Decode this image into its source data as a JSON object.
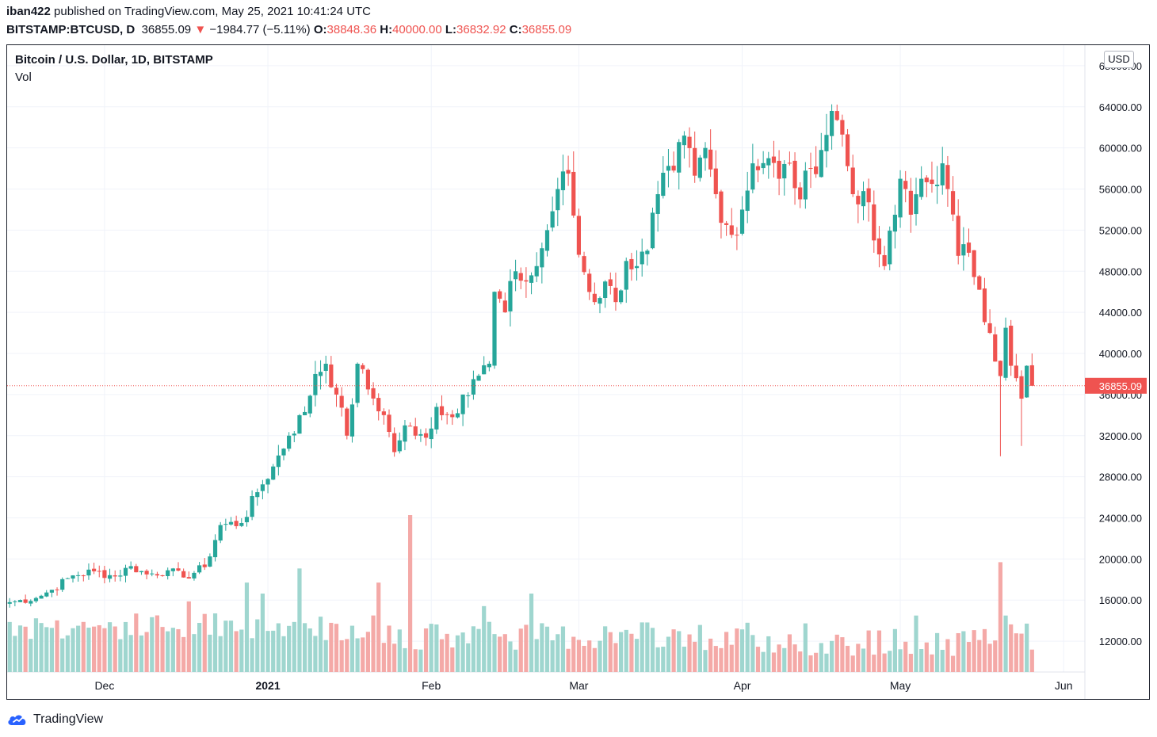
{
  "header": {
    "publisher": "iban422",
    "published_text": "published on TradingView.com, May 25, 2021 10:41:24 UTC",
    "symbol": "BITSTAMP:BTCUSD, D",
    "last": "36855.09",
    "arrow": "▼",
    "change": "−1984.77 (−5.11%)",
    "o_label": "O:",
    "o_value": "38848.36",
    "h_label": "H:",
    "h_value": "40000.00",
    "l_label": "L:",
    "l_value": "36832.92",
    "c_label": "C:",
    "c_value": "36855.09"
  },
  "legend": {
    "title": "Bitcoin / U.S. Dollar, 1D, BITSTAMP",
    "volume_label": "Vol"
  },
  "currency": "USD",
  "price_tag": "36855.09",
  "footer": {
    "brand": "TradingView"
  },
  "colors": {
    "up": "#26a69a",
    "down": "#ef5350",
    "vol_up": "#9fd6cf",
    "vol_down": "#f4a9a7",
    "grid": "#f0f3fa",
    "text": "#131722"
  },
  "chart_data": {
    "type": "candlestick",
    "title": "Bitcoin / U.S. Dollar, 1D, BITSTAMP",
    "ylim": [
      9000,
      70000
    ],
    "y_ticks": [
      12000,
      16000,
      20000,
      24000,
      28000,
      32000,
      36000,
      40000,
      44000,
      48000,
      52000,
      56000,
      60000,
      64000,
      68000
    ],
    "y_tick_labels": [
      "12000.00",
      "16000.00",
      "20000.00",
      "24000.00",
      "28000.00",
      "32000.00",
      "36000.00",
      "40000.00",
      "44000.00",
      "48000.00",
      "52000.00",
      "56000.00",
      "60000.00",
      "64000.00",
      "68000.00"
    ],
    "x_ticks": [
      {
        "label": "Dec",
        "index": 18,
        "bold": false
      },
      {
        "label": "2021",
        "index": 49,
        "bold": true
      },
      {
        "label": "Feb",
        "index": 80,
        "bold": false
      },
      {
        "label": "Mar",
        "index": 108,
        "bold": false
      },
      {
        "label": "Apr",
        "index": 139,
        "bold": false
      },
      {
        "label": "May",
        "index": 169,
        "bold": false
      },
      {
        "label": "Jun",
        "index": 200,
        "bold": false
      }
    ],
    "last_price": 36855.09,
    "volume_scale": "relative",
    "close_anchors": [
      [
        0,
        15800
      ],
      [
        5,
        16200
      ],
      [
        8,
        17000
      ],
      [
        12,
        18400
      ],
      [
        16,
        18800
      ],
      [
        20,
        18300
      ],
      [
        23,
        19300
      ],
      [
        26,
        18500
      ],
      [
        30,
        18900
      ],
      [
        33,
        18200
      ],
      [
        37,
        19200
      ],
      [
        40,
        23300
      ],
      [
        44,
        23500
      ],
      [
        47,
        26500
      ],
      [
        50,
        29000
      ],
      [
        53,
        32000
      ],
      [
        56,
        34300
      ],
      [
        58,
        38000
      ],
      [
        60,
        39000
      ],
      [
        62,
        36000
      ],
      [
        64,
        32000
      ],
      [
        66,
        39000
      ],
      [
        68,
        36500
      ],
      [
        71,
        34000
      ],
      [
        73,
        30400
      ],
      [
        75,
        33000
      ],
      [
        77,
        32000
      ],
      [
        79,
        31800
      ],
      [
        81,
        34800
      ],
      [
        84,
        33800
      ],
      [
        86,
        36000
      ],
      [
        88,
        37500
      ],
      [
        91,
        39000
      ],
      [
        92,
        46000
      ],
      [
        94,
        44000
      ],
      [
        96,
        48000
      ],
      [
        98,
        47000
      ],
      [
        100,
        48500
      ],
      [
        102,
        52000
      ],
      [
        104,
        56000
      ],
      [
        106,
        57500
      ],
      [
        108,
        49600
      ],
      [
        111,
        45000
      ],
      [
        113,
        47000
      ],
      [
        115,
        45000
      ],
      [
        117,
        49000
      ],
      [
        119,
        48500
      ],
      [
        121,
        50000
      ],
      [
        123,
        55500
      ],
      [
        126,
        57800
      ],
      [
        128,
        61200
      ],
      [
        130,
        57300
      ],
      [
        132,
        60000
      ],
      [
        134,
        55500
      ],
      [
        136,
        52500
      ],
      [
        138,
        51500
      ],
      [
        139,
        54000
      ],
      [
        141,
        58500
      ],
      [
        144,
        59000
      ],
      [
        146,
        57000
      ],
      [
        148,
        58500
      ],
      [
        150,
        55000
      ],
      [
        152,
        58000
      ],
      [
        154,
        59800
      ],
      [
        156,
        63600
      ],
      [
        158,
        61300
      ],
      [
        160,
        55500
      ],
      [
        162,
        55800
      ],
      [
        164,
        51000
      ],
      [
        166,
        48500
      ],
      [
        168,
        53500
      ],
      [
        169,
        57000
      ],
      [
        170,
        56000
      ],
      [
        171,
        53500
      ],
      [
        173,
        57000
      ],
      [
        175,
        56500
      ],
      [
        177,
        58500
      ],
      [
        178,
        56000
      ],
      [
        180,
        49500
      ],
      [
        182,
        49800
      ],
      [
        184,
        46200
      ],
      [
        186,
        42000
      ],
      [
        188,
        37800
      ],
      [
        189,
        42500
      ],
      [
        190,
        38800
      ],
      [
        191,
        37600
      ],
      [
        192,
        35600
      ],
      [
        193,
        38800
      ],
      [
        194,
        36855
      ]
    ],
    "volume_spikes": [
      [
        34,
        0.45
      ],
      [
        45,
        0.57
      ],
      [
        48,
        0.5
      ],
      [
        55,
        0.66
      ],
      [
        70,
        0.57
      ],
      [
        76,
        1.0
      ],
      [
        90,
        0.42
      ],
      [
        99,
        0.5
      ],
      [
        131,
        0.3
      ],
      [
        151,
        0.31
      ],
      [
        172,
        0.36
      ],
      [
        188,
        0.7
      ],
      [
        189,
        0.36
      ]
    ]
  }
}
